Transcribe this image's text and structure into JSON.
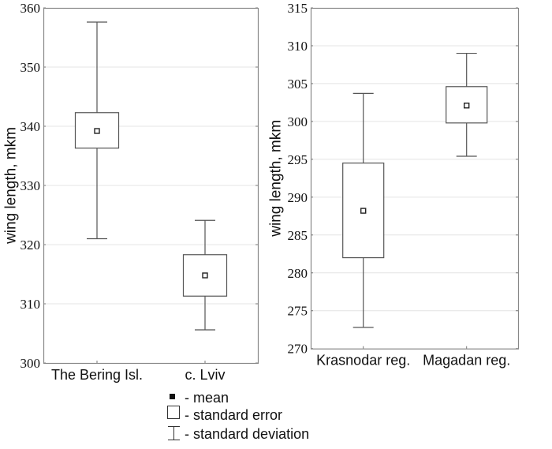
{
  "chart_data": [
    {
      "type": "box",
      "ylabel": "wing length, mkm",
      "ylim": [
        300,
        360
      ],
      "yticks": [
        "300",
        "310",
        "320",
        "330",
        "340",
        "350",
        "360"
      ],
      "grid": true,
      "categories": [
        "The Bering Isl.",
        "c. Lviv"
      ],
      "series": [
        {
          "name": "The Bering Isl.",
          "mean": 339.2,
          "se_low": 336.3,
          "se_high": 342.3,
          "sd_low": 321.0,
          "sd_high": 357.6
        },
        {
          "name": "c. Lviv",
          "mean": 314.8,
          "se_low": 311.3,
          "se_high": 318.3,
          "sd_low": 305.6,
          "sd_high": 324.1
        }
      ]
    },
    {
      "type": "box",
      "ylabel": "wing length, mkm",
      "ylim": [
        270,
        315
      ],
      "yticks": [
        "270",
        "275",
        "280",
        "285",
        "290",
        "295",
        "300",
        "305",
        "310",
        "315"
      ],
      "grid": true,
      "categories": [
        "Krasnodar reg.",
        "Magadan reg."
      ],
      "series": [
        {
          "name": "Krasnodar reg.",
          "mean": 288.2,
          "se_low": 282.0,
          "se_high": 294.5,
          "sd_low": 272.8,
          "sd_high": 303.7
        },
        {
          "name": "Magadan reg.",
          "mean": 302.1,
          "se_low": 299.8,
          "se_high": 304.6,
          "sd_low": 295.4,
          "sd_high": 309.0
        }
      ]
    }
  ],
  "legend": {
    "items": [
      "- mean",
      "- standard error",
      "- standard deviation"
    ],
    "placement": "bottom-center"
  }
}
